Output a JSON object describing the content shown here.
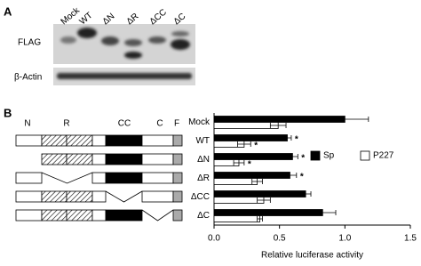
{
  "panel_a": {
    "label": "A",
    "lanes": [
      "Mock",
      "WT",
      "ΔN",
      "ΔR",
      "ΔCC",
      "ΔC"
    ],
    "rows": [
      "FLAG",
      "β-Actin"
    ]
  },
  "panel_b": {
    "label": "B",
    "domains": [
      "N",
      "R",
      "CC",
      "C",
      "F"
    ]
  },
  "chart_data": {
    "type": "bar",
    "orientation": "horizontal",
    "categories": [
      "Mock",
      "WT",
      "ΔN",
      "ΔR",
      "ΔCC",
      "ΔC"
    ],
    "series": [
      {
        "name": "Sp",
        "color": "#000000",
        "values": [
          1.0,
          0.56,
          0.6,
          0.58,
          0.7,
          0.83
        ],
        "errors": [
          0.18,
          0.03,
          0.04,
          0.05,
          0.04,
          0.1
        ],
        "marks": [
          null,
          "*",
          "*",
          "*",
          null,
          null
        ]
      },
      {
        "name": "P227",
        "color": "#ffffff",
        "values": [
          0.49,
          0.23,
          0.19,
          0.33,
          0.38,
          0.35
        ],
        "errors": [
          0.06,
          0.05,
          0.04,
          0.04,
          0.05,
          0.02
        ],
        "marks": [
          null,
          "*",
          "*",
          null,
          null,
          null
        ]
      }
    ],
    "xlabel": "Relative luciferase activity",
    "xlim": [
      0,
      1.5
    ],
    "xticks": [
      {
        "value": 0,
        "label": "0.0"
      },
      0.5,
      {
        "value": 1,
        "label": "1.0"
      },
      1.5
    ],
    "legend": "right"
  }
}
